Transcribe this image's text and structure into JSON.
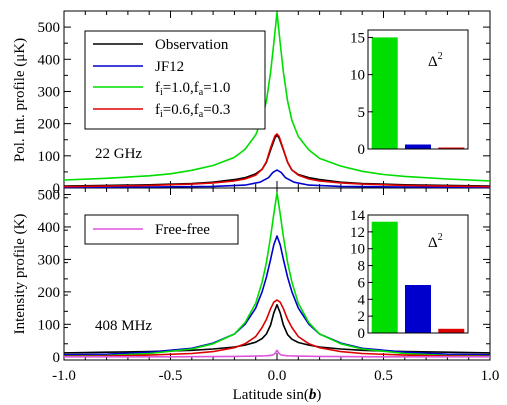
{
  "chart_data": [
    {
      "type": "line",
      "panel": "top",
      "ylabel": "Pol. Int. profile (μK)",
      "xlim": [
        -1.0,
        1.0
      ],
      "ylim": [
        0,
        550
      ],
      "yticks": [
        0,
        100,
        200,
        300,
        400,
        500
      ],
      "annotation": "22 GHz",
      "legend_position": "top-left",
      "series": [
        {
          "name": "Observation",
          "color": "#000000",
          "x": [
            -1.0,
            -0.8,
            -0.6,
            -0.4,
            -0.3,
            -0.2,
            -0.15,
            -0.1,
            -0.07,
            -0.05,
            -0.03,
            -0.01,
            0.0,
            0.01,
            0.03,
            0.05,
            0.07,
            0.1,
            0.15,
            0.2,
            0.3,
            0.4,
            0.6,
            0.8,
            1.0
          ],
          "y": [
            6,
            8,
            10,
            14,
            18,
            26,
            32,
            44,
            58,
            80,
            118,
            155,
            165,
            155,
            118,
            80,
            56,
            42,
            32,
            26,
            18,
            14,
            10,
            8,
            6
          ]
        },
        {
          "name": "JF12",
          "color": "#0000cc",
          "x": [
            -1.0,
            -0.6,
            -0.3,
            -0.15,
            -0.08,
            -0.04,
            -0.02,
            0.0,
            0.02,
            0.04,
            0.08,
            0.15,
            0.3,
            0.6,
            1.0
          ],
          "y": [
            2,
            3,
            5,
            9,
            18,
            32,
            48,
            56,
            48,
            32,
            18,
            9,
            5,
            3,
            2
          ]
        },
        {
          "name": "f_i=1.0,f_a=1.0",
          "color": "#00dd00",
          "x": [
            -1.0,
            -0.8,
            -0.6,
            -0.5,
            -0.4,
            -0.3,
            -0.2,
            -0.15,
            -0.1,
            -0.07,
            -0.05,
            -0.03,
            -0.015,
            0.0,
            0.015,
            0.03,
            0.05,
            0.07,
            0.1,
            0.15,
            0.2,
            0.3,
            0.4,
            0.5,
            0.6,
            0.8,
            1.0
          ],
          "y": [
            25,
            30,
            38,
            44,
            55,
            70,
            95,
            120,
            165,
            215,
            270,
            360,
            450,
            545,
            450,
            360,
            270,
            210,
            160,
            118,
            92,
            68,
            52,
            42,
            36,
            28,
            22
          ]
        },
        {
          "name": "f_i=0.6,f_a=0.3",
          "color": "#dd0000",
          "x": [
            -1.0,
            -0.8,
            -0.6,
            -0.4,
            -0.3,
            -0.2,
            -0.15,
            -0.1,
            -0.07,
            -0.05,
            -0.03,
            -0.01,
            0.0,
            0.01,
            0.03,
            0.05,
            0.07,
            0.1,
            0.15,
            0.2,
            0.3,
            0.4,
            0.6,
            0.8,
            1.0
          ],
          "y": [
            4,
            6,
            8,
            12,
            16,
            22,
            28,
            40,
            58,
            82,
            125,
            162,
            168,
            160,
            120,
            80,
            56,
            40,
            28,
            22,
            16,
            12,
            8,
            6,
            4
          ]
        }
      ],
      "inset": {
        "type": "bar",
        "label": "Δ²",
        "ylim": [
          0,
          16
        ],
        "yticks": [
          0,
          5,
          10,
          15
        ],
        "values": [
          15.0,
          0.6,
          0.2
        ],
        "colors": [
          "#00dd00",
          "#0000cc",
          "#dd0000"
        ]
      }
    },
    {
      "type": "line",
      "panel": "bottom",
      "xlabel": "Latitude sin(b)",
      "ylabel": "Intensity profile (K)",
      "xlim": [
        -1.0,
        1.0
      ],
      "ylim": [
        -10,
        520
      ],
      "xticks": [
        -1.0,
        -0.5,
        0.0,
        0.5,
        1.0
      ],
      "yticks": [
        0,
        100,
        200,
        300,
        400,
        500
      ],
      "annotation": "408 MHz",
      "legend_position": "top-left",
      "series": [
        {
          "name": "Observation",
          "color": "#000000",
          "x": [
            -1.0,
            -0.8,
            -0.6,
            -0.4,
            -0.3,
            -0.2,
            -0.15,
            -0.1,
            -0.07,
            -0.05,
            -0.03,
            -0.015,
            0.0,
            0.015,
            0.03,
            0.05,
            0.07,
            0.1,
            0.15,
            0.2,
            0.3,
            0.4,
            0.6,
            0.8,
            1.0
          ],
          "y": [
            12,
            14,
            16,
            20,
            24,
            30,
            36,
            45,
            56,
            70,
            98,
            135,
            160,
            135,
            98,
            68,
            54,
            44,
            36,
            30,
            24,
            20,
            16,
            14,
            12
          ]
        },
        {
          "name": "JF12",
          "color": "#0000cc",
          "x": [
            -1.0,
            -0.8,
            -0.6,
            -0.4,
            -0.3,
            -0.2,
            -0.15,
            -0.1,
            -0.07,
            -0.05,
            -0.03,
            -0.015,
            0.0,
            0.015,
            0.03,
            0.05,
            0.07,
            0.1,
            0.15,
            0.2,
            0.3,
            0.4,
            0.6,
            0.8,
            1.0
          ],
          "y": [
            6,
            8,
            14,
            26,
            42,
            70,
            100,
            150,
            200,
            245,
            300,
            345,
            372,
            345,
            300,
            245,
            200,
            150,
            100,
            70,
            42,
            26,
            14,
            8,
            6
          ]
        },
        {
          "name": "f_i=1.0,f_a=1.0",
          "color": "#00dd00",
          "x": [
            -1.0,
            -0.8,
            -0.6,
            -0.4,
            -0.3,
            -0.2,
            -0.15,
            -0.1,
            -0.07,
            -0.05,
            -0.03,
            -0.015,
            0.0,
            0.015,
            0.03,
            0.05,
            0.07,
            0.1,
            0.15,
            0.2,
            0.3,
            0.4,
            0.6,
            0.8,
            1.0
          ],
          "y": [
            2,
            4,
            10,
            24,
            40,
            70,
            105,
            165,
            230,
            290,
            370,
            440,
            505,
            440,
            370,
            290,
            230,
            165,
            105,
            70,
            40,
            24,
            10,
            4,
            2
          ]
        },
        {
          "name": "f_i=0.6,f_a=0.3",
          "color": "#dd0000",
          "x": [
            -1.0,
            -0.8,
            -0.6,
            -0.4,
            -0.3,
            -0.2,
            -0.15,
            -0.1,
            -0.07,
            -0.05,
            -0.03,
            -0.015,
            0.0,
            0.015,
            0.03,
            0.05,
            0.07,
            0.1,
            0.15,
            0.2,
            0.3,
            0.4,
            0.6,
            0.8,
            1.0
          ],
          "y": [
            1,
            2,
            5,
            10,
            16,
            28,
            40,
            62,
            90,
            115,
            148,
            168,
            175,
            168,
            148,
            115,
            90,
            62,
            40,
            28,
            16,
            10,
            5,
            2,
            1
          ]
        },
        {
          "name": "Free-free",
          "color": "#dd55dd",
          "x": [
            -1.0,
            -0.5,
            -0.2,
            -0.1,
            -0.05,
            -0.02,
            -0.01,
            0.0,
            0.01,
            0.02,
            0.05,
            0.1,
            0.2,
            0.5,
            1.0
          ],
          "y": [
            0,
            0,
            1,
            2,
            3,
            5,
            10,
            20,
            10,
            5,
            3,
            2,
            1,
            0,
            0
          ]
        }
      ],
      "inset": {
        "type": "bar",
        "label": "Δ²",
        "ylim": [
          0,
          14
        ],
        "yticks": [
          0,
          2,
          4,
          6,
          8,
          10,
          12,
          14
        ],
        "values": [
          13.2,
          5.7,
          0.5
        ],
        "colors": [
          "#00dd00",
          "#0000cc",
          "#dd0000"
        ]
      }
    }
  ],
  "legends": {
    "top": [
      {
        "text": "Observation",
        "color": "#000000"
      },
      {
        "text": "JF12",
        "color": "#0000cc"
      },
      {
        "text": "f",
        "sub1": "i",
        "mid": "=1.0,f",
        "sub2": "a",
        "end": "=1.0",
        "color": "#00dd00"
      },
      {
        "text": "f",
        "sub1": "i",
        "mid": "=0.6,f",
        "sub2": "a",
        "end": "=0.3",
        "color": "#dd0000"
      }
    ],
    "bottom": [
      {
        "text": "Free-free",
        "color": "#dd55dd"
      }
    ]
  },
  "labels": {
    "top_ylabel": "Pol. Int. profile (μK)",
    "bottom_ylabel": "Intensity profile (K)",
    "xlabel_prefix": "Latitude sin(",
    "xlabel_var": "b",
    "xlabel_suffix": ")",
    "top_annotation": "22 GHz",
    "bottom_annotation": "408 MHz",
    "inset_label": "Δ",
    "inset_sup": "2"
  }
}
